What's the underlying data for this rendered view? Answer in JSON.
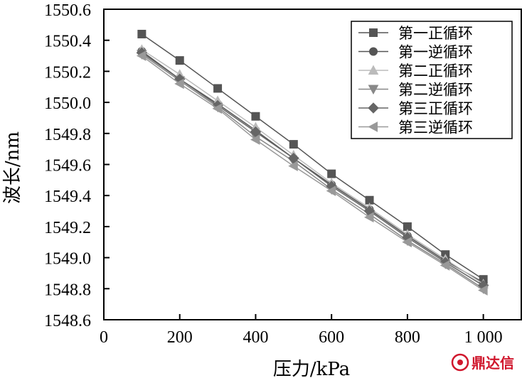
{
  "chart_data": {
    "type": "line",
    "xlabel": "压力/kPa",
    "ylabel": "波长/nm",
    "xlim": [
      0,
      1100
    ],
    "ylim": [
      1548.6,
      1550.6
    ],
    "xticks": [
      0,
      200,
      400,
      600,
      800,
      1000
    ],
    "xtick_labels": [
      "0",
      "200",
      "400",
      "600",
      "800",
      "1 000"
    ],
    "yticks": [
      1548.6,
      1548.8,
      1549.0,
      1549.2,
      1549.4,
      1549.6,
      1549.8,
      1550.0,
      1550.2,
      1550.4,
      1550.6
    ],
    "ytick_labels": [
      "1548.6",
      "1548.8",
      "1549.0",
      "1549.2",
      "1549.4",
      "1549.6",
      "1549.8",
      "1550.0",
      "1550.2",
      "1550.4",
      "1550.6"
    ],
    "grid": false,
    "legend_position": "top-right",
    "x": [
      100,
      200,
      300,
      400,
      500,
      600,
      700,
      800,
      900,
      1000
    ],
    "series": [
      {
        "name": "第一正循环",
        "marker": "square",
        "color": "#555555",
        "values": [
          1550.44,
          1550.27,
          1550.09,
          1549.91,
          1549.73,
          1549.54,
          1549.37,
          1549.2,
          1549.02,
          1548.86
        ]
      },
      {
        "name": "第一逆循环",
        "marker": "circle",
        "color": "#555555",
        "values": [
          1550.33,
          1550.15,
          1549.99,
          1549.82,
          1549.64,
          1549.47,
          1549.31,
          1549.14,
          1548.98,
          1548.84
        ]
      },
      {
        "name": "第二正循环",
        "marker": "triangle-up",
        "color": "#bbbbbb",
        "values": [
          1550.34,
          1550.18,
          1550.01,
          1549.84,
          1549.66,
          1549.48,
          1549.32,
          1549.15,
          1548.99,
          1548.83
        ]
      },
      {
        "name": "第二逆循环",
        "marker": "triangle-down",
        "color": "#888888",
        "values": [
          1550.31,
          1550.14,
          1549.97,
          1549.78,
          1549.62,
          1549.44,
          1549.28,
          1549.11,
          1548.96,
          1548.8
        ]
      },
      {
        "name": "第三正循环",
        "marker": "diamond",
        "color": "#666666",
        "values": [
          1550.32,
          1550.15,
          1549.98,
          1549.81,
          1549.64,
          1549.46,
          1549.3,
          1549.13,
          1548.97,
          1548.82
        ]
      },
      {
        "name": "第三逆循环",
        "marker": "triangle-left",
        "color": "#999999",
        "values": [
          1550.3,
          1550.12,
          1549.96,
          1549.76,
          1549.59,
          1549.43,
          1549.26,
          1549.1,
          1548.95,
          1548.79
        ]
      }
    ]
  },
  "watermark": {
    "text": "鼎达信",
    "color": "#d0162c"
  }
}
